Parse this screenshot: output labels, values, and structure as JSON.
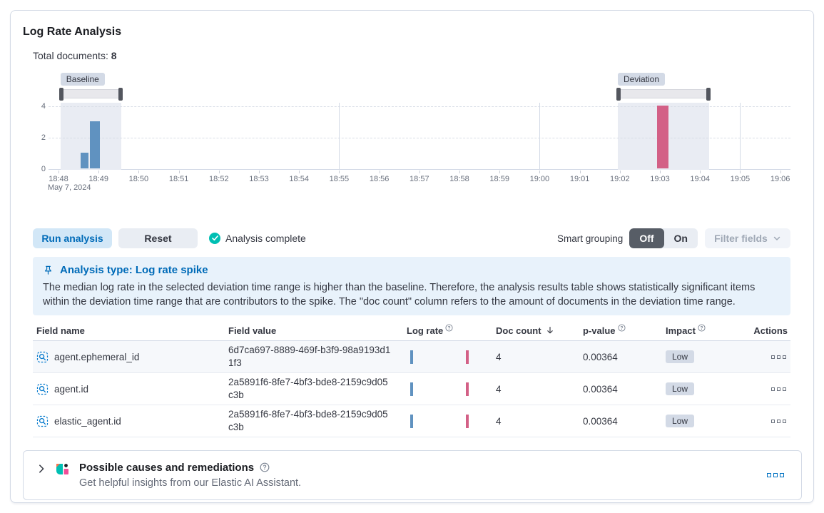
{
  "panel": {
    "title": "Log Rate Analysis"
  },
  "summary": {
    "label": "Total documents:",
    "value": "8"
  },
  "chart": {
    "type": "bar",
    "x_ticks": [
      "18:48",
      "18:49",
      "18:50",
      "18:51",
      "18:52",
      "18:53",
      "18:54",
      "18:55",
      "18:56",
      "18:57",
      "18:58",
      "18:59",
      "19:00",
      "19:01",
      "19:02",
      "19:03",
      "19:04",
      "19:05",
      "19:06"
    ],
    "date_label": "May 7, 2024",
    "y_ticks": [
      4,
      2,
      0
    ],
    "ylim": [
      0,
      4
    ],
    "v_gridlines": [
      "18:55",
      "19:00",
      "19:05"
    ],
    "bars": [
      {
        "time": "18:48.55",
        "value": 1,
        "w": 11,
        "series": "baseline"
      },
      {
        "time": "18:48.78",
        "value": 3,
        "w": 14,
        "series": "baseline"
      },
      {
        "time": "19:02.93",
        "value": 4,
        "w": 16,
        "series": "deviation"
      }
    ],
    "baseline": {
      "label": "Baseline",
      "start": "18:48.05",
      "end": "18:49.57"
    },
    "deviation": {
      "label": "Deviation",
      "start": "19:01.95",
      "end": "19:04.23"
    }
  },
  "toolbar": {
    "run_label": "Run analysis",
    "reset_label": "Reset",
    "status": "Analysis complete",
    "smart_grouping_label": "Smart grouping",
    "off_label": "Off",
    "on_label": "On",
    "filter_fields_label": "Filter fields"
  },
  "callout": {
    "title": "Analysis type: Log rate spike",
    "body": "The median log rate in the selected deviation time range is higher than the baseline. Therefore, the analysis results table shows statistically significant items within the deviation time range that are contributors to the spike. The \"doc count\" column refers to the amount of documents in the deviation time range."
  },
  "table": {
    "columns": {
      "field_name": "Field name",
      "field_value": "Field value",
      "log_rate": "Log rate",
      "doc_count": "Doc count",
      "p_value": "p-value",
      "impact": "Impact",
      "actions": "Actions"
    },
    "sorted_by": "doc_count",
    "sort_direction": "desc",
    "rows": [
      {
        "field_name": "agent.ephemeral_id",
        "field_value": "6d7ca697-8889-469f-b3f9-98a9193d11f3",
        "doc_count": "4",
        "p_value": "0.00364",
        "impact": "Low"
      },
      {
        "field_name": "agent.id",
        "field_value": "2a5891f6-8fe7-4bf3-bde8-2159c9d05c3b",
        "doc_count": "4",
        "p_value": "0.00364",
        "impact": "Low"
      },
      {
        "field_name": "elastic_agent.id",
        "field_value": "2a5891f6-8fe7-4bf3-bde8-2159c9d05c3b",
        "doc_count": "4",
        "p_value": "0.00364",
        "impact": "Low"
      }
    ]
  },
  "assistant": {
    "title": "Possible causes and remediations",
    "subtitle": "Get helpful insights from our Elastic AI Assistant."
  },
  "colors": {
    "baseline_bar": "#6092c0",
    "deviation_bar": "#d36086",
    "brush_handle": "#53565e",
    "primary_blue": "#006bb8",
    "success_teal": "#00bfb3",
    "callout_bg": "#e8f2fb",
    "badge_bg": "#d3dae6"
  }
}
